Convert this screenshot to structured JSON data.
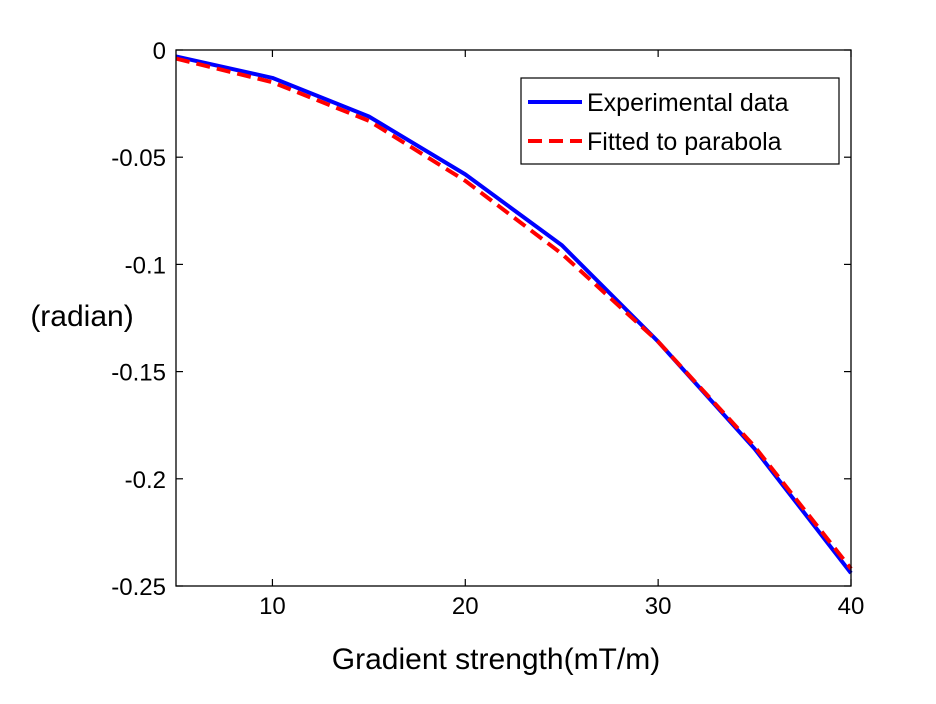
{
  "chart_data": {
    "type": "line",
    "title": "",
    "xlabel": "Gradient strength(mT/m)",
    "ylabel": "(radian)",
    "xlim": [
      5,
      40
    ],
    "ylim": [
      -0.25,
      0
    ],
    "xticks": [
      10,
      20,
      30,
      40
    ],
    "xtick_labels": [
      "10",
      "20",
      "30",
      "40"
    ],
    "yticks": [
      0,
      -0.05,
      -0.1,
      -0.15,
      -0.2,
      -0.25
    ],
    "ytick_labels": [
      "0",
      "-0.05",
      "-0.1",
      "-0.15",
      "-0.2",
      "-0.25"
    ],
    "grid": false,
    "legend_position": "top-right",
    "series": [
      {
        "name": "Experimental data",
        "color": "#0000ff",
        "style": "solid",
        "x": [
          5,
          10,
          15,
          20,
          25,
          30,
          35,
          40
        ],
        "y": [
          -0.003,
          -0.013,
          -0.031,
          -0.058,
          -0.091,
          -0.136,
          -0.186,
          -0.244
        ]
      },
      {
        "name": "Fitted to parabola",
        "color": "#ff0000",
        "style": "dashed",
        "x": [
          5,
          10,
          15,
          20,
          25,
          30,
          35,
          40
        ],
        "y": [
          -0.004,
          -0.015,
          -0.033,
          -0.061,
          -0.095,
          -0.136,
          -0.185,
          -0.242
        ]
      }
    ]
  }
}
